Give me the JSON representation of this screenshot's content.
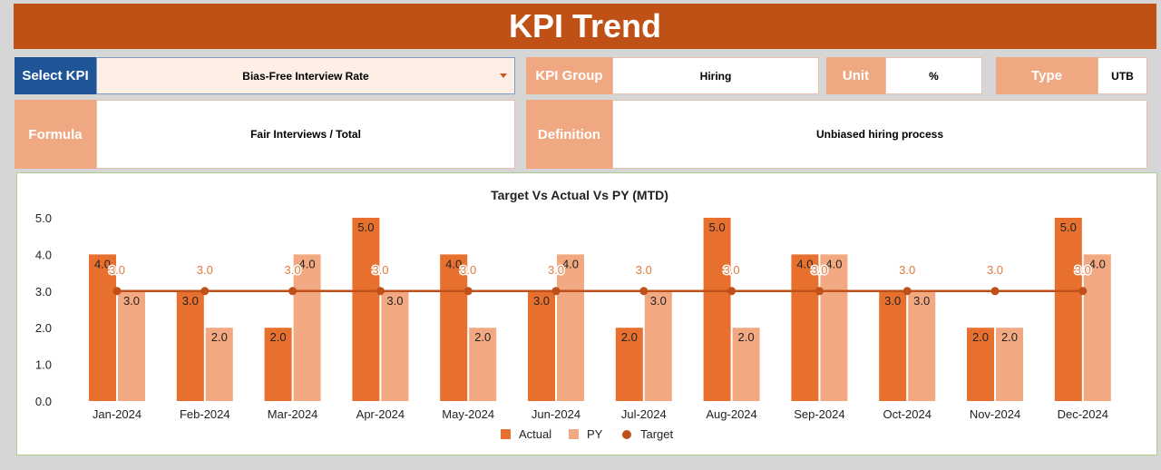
{
  "header": {
    "title": "KPI Trend"
  },
  "select_kpi": {
    "label": "Select KPI",
    "value": "Bias-Free Interview Rate"
  },
  "kpi_group": {
    "label": "KPI Group",
    "value": "Hiring"
  },
  "unit": {
    "label": "Unit",
    "value": "%"
  },
  "type": {
    "label": "Type",
    "value": "UTB"
  },
  "formula": {
    "label": "Formula",
    "value": "Fair Interviews / Total"
  },
  "definition": {
    "label": "Definition",
    "value": "Unbiased hiring process"
  },
  "colors": {
    "actual": "#E8702F",
    "py": "#F2A880",
    "target": "#C0501A",
    "header": "#BF5016",
    "select": "#1F5597"
  },
  "chart_data": {
    "type": "bar",
    "title": "Target Vs Actual Vs PY (MTD)",
    "categories": [
      "Jan-2024",
      "Feb-2024",
      "Mar-2024",
      "Apr-2024",
      "May-2024",
      "Jun-2024",
      "Jul-2024",
      "Aug-2024",
      "Sep-2024",
      "Oct-2024",
      "Nov-2024",
      "Dec-2024"
    ],
    "series": [
      {
        "name": "Actual",
        "type": "bar",
        "values": [
          4,
          3,
          2,
          5,
          4,
          3,
          2,
          5,
          4,
          3,
          2,
          5
        ]
      },
      {
        "name": "PY",
        "type": "bar",
        "values": [
          3,
          2,
          4,
          3,
          2,
          4,
          3,
          2,
          4,
          3,
          2,
          4
        ]
      },
      {
        "name": "Target",
        "type": "line",
        "values": [
          3,
          3,
          3,
          3,
          3,
          3,
          3,
          3,
          3,
          3,
          3,
          3
        ]
      }
    ],
    "ylim": [
      0,
      5
    ],
    "yticks": [
      "0.0",
      "1.0",
      "2.0",
      "3.0",
      "4.0",
      "5.0"
    ],
    "grid": false,
    "legend": "bottom"
  }
}
